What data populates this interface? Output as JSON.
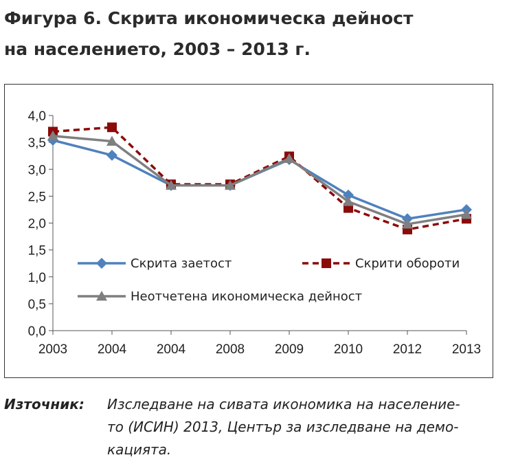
{
  "title": {
    "line1": "Фигура 6. Скрита икономическа дейност",
    "line2": "на населението, 2003 – 2013 г."
  },
  "source": {
    "label": "Източник:",
    "line1": "Изследване на сивата икономика на население-",
    "line2": "то (ИСИН) 2013, Център за изследване на демо-",
    "line3": "кацията."
  },
  "chart_data": {
    "type": "line",
    "categories": [
      "2003",
      "2004",
      "2004",
      "2008",
      "2009",
      "2010",
      "2012",
      "2013"
    ],
    "ylim": [
      0,
      4.0
    ],
    "yticks": [
      "0,0",
      "0,5",
      "1,0",
      "1,5",
      "2,0",
      "2,5",
      "3,0",
      "3,5",
      "4,0"
    ],
    "ytick_values": [
      0,
      0.5,
      1.0,
      1.5,
      2.0,
      2.5,
      3.0,
      3.5,
      4.0
    ],
    "grid": false,
    "legend_position": "inside-lower",
    "series": [
      {
        "name": "Скрита заетост",
        "color": "#4f81bd",
        "marker": "diamond",
        "dash": "solid",
        "values": [
          3.54,
          3.26,
          2.7,
          2.7,
          3.18,
          2.52,
          2.08,
          2.25
        ]
      },
      {
        "name": "Скрити обороти",
        "color": "#8b0a0a",
        "marker": "square",
        "dash": "dashed",
        "values": [
          3.7,
          3.78,
          2.72,
          2.72,
          3.24,
          2.28,
          1.88,
          2.08
        ]
      },
      {
        "name": "Неотчетена икономическа дейност",
        "color": "#7f7f7f",
        "marker": "triangle",
        "dash": "solid",
        "values": [
          3.62,
          3.52,
          2.7,
          2.7,
          3.2,
          2.4,
          1.98,
          2.16
        ]
      }
    ]
  }
}
